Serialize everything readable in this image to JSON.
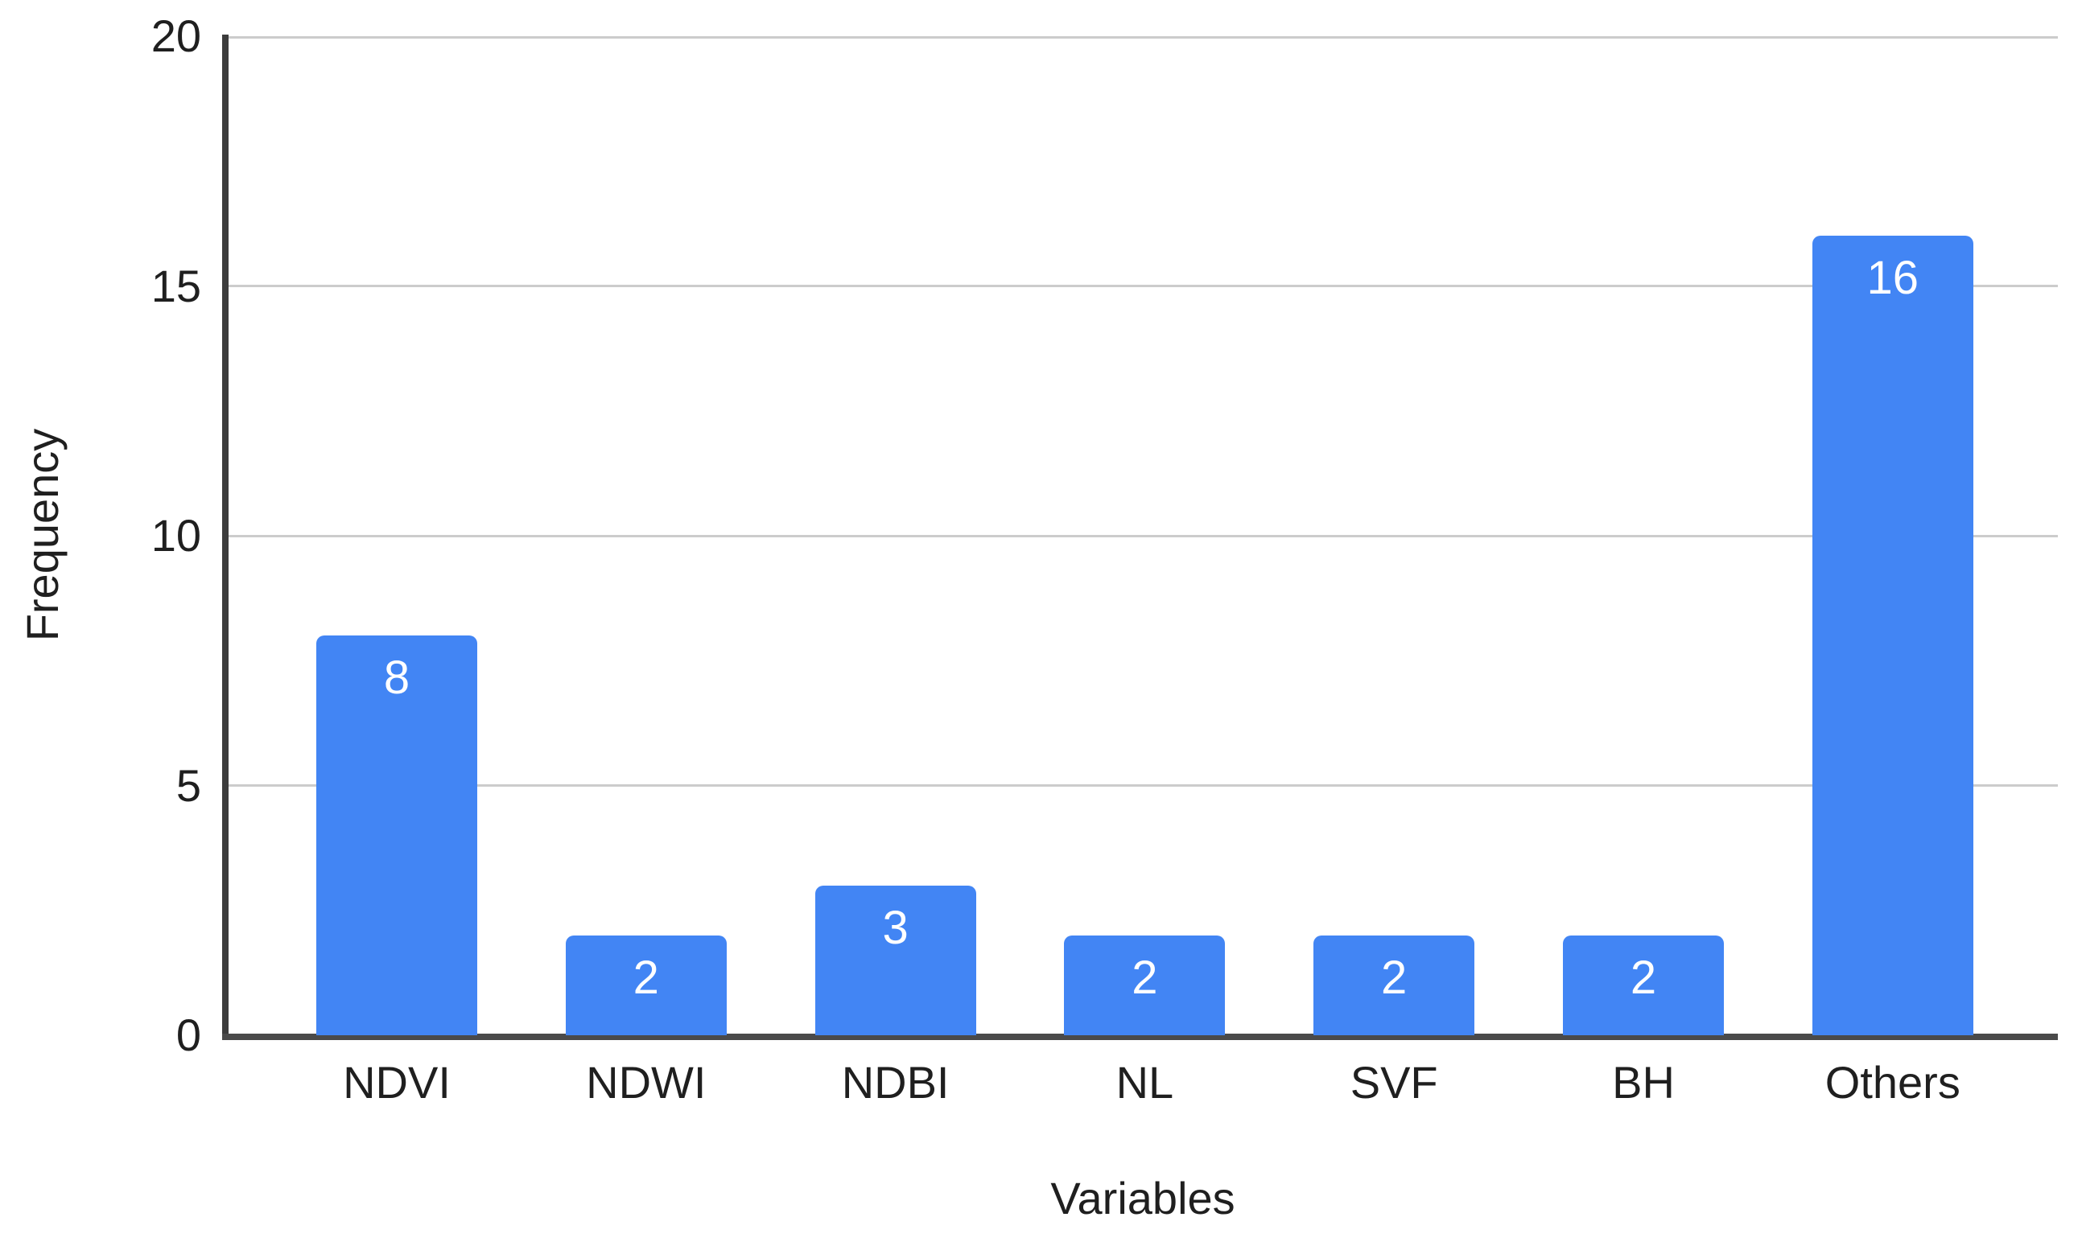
{
  "chart_data": {
    "type": "bar",
    "categories": [
      "NDVI",
      "NDWI",
      "NDBI",
      "NL",
      "SVF",
      "BH",
      "Others"
    ],
    "values": [
      8,
      2,
      3,
      2,
      2,
      2,
      16
    ],
    "title": "",
    "xlabel": "Variables",
    "ylabel": "Frequency",
    "ylim": [
      0,
      20
    ],
    "yticks": [
      0,
      5,
      10,
      15,
      20
    ],
    "grid": true,
    "legend": "none",
    "value_labels": [
      "8",
      "2",
      "3",
      "2",
      "2",
      "2",
      "16"
    ],
    "colors": {
      "bar": "#4285F4",
      "value_label": "#FFFFFF",
      "gridline": "#CCCCCC",
      "y_axis_line": "#3C3C3C",
      "x_axis_line": "#4A4A4A",
      "text": "#1F1F1F",
      "background": "#FFFFFF"
    }
  }
}
